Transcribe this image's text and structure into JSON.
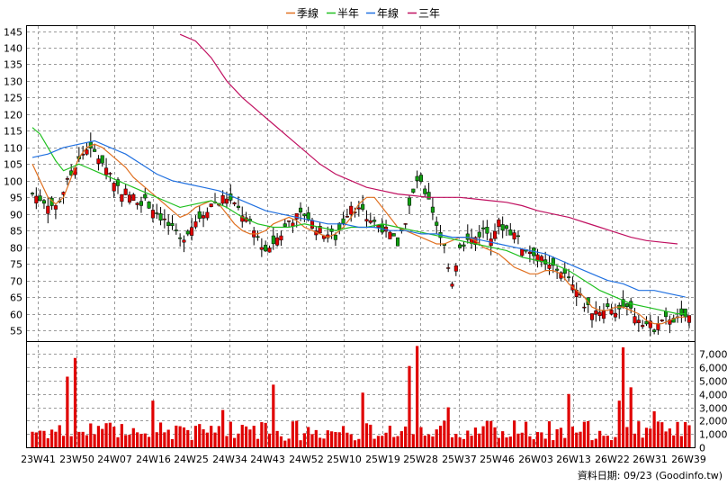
{
  "legend": [
    {
      "label": "季線",
      "color": "#e07020"
    },
    {
      "label": "半年",
      "color": "#20c020"
    },
    {
      "label": "年線",
      "color": "#2070e0"
    },
    {
      "label": "三年",
      "color": "#c01060"
    }
  ],
  "footer": "資料日期: 09/23  (Goodinfo.tw)",
  "chart_data": {
    "type": "candlestick",
    "price_axis": {
      "ticks": [
        55,
        60,
        65,
        70,
        75,
        80,
        85,
        90,
        95,
        100,
        105,
        110,
        115,
        120,
        125,
        130,
        135,
        140,
        145
      ],
      "ylim": [
        51.5,
        146.5
      ]
    },
    "volume_axis": {
      "ticks": [
        0,
        1000,
        2000,
        3000,
        4000,
        5000,
        6000,
        7000
      ],
      "tick_labels": [
        "0",
        "1,000",
        "2,000",
        "3,000",
        "4,000",
        "5,000",
        "6,000",
        "7,000"
      ],
      "ylim": [
        0,
        7900
      ]
    },
    "x_labels": [
      "23W41",
      "23W50",
      "24W07",
      "24W16",
      "24W25",
      "24W34",
      "24W43",
      "24W52",
      "25W10",
      "25W19",
      "25W28",
      "25W37",
      "25W46",
      "26W03",
      "26W13",
      "26W22",
      "26W31",
      "26W39"
    ],
    "grid": true,
    "moving_averages": [
      {
        "name": "季線",
        "points": [
          [
            0,
            105
          ],
          [
            2,
            100
          ],
          [
            4,
            95
          ],
          [
            6,
            93
          ],
          [
            8,
            95
          ],
          [
            10,
            101
          ],
          [
            12,
            107
          ],
          [
            14,
            110
          ],
          [
            16,
            111
          ],
          [
            18,
            110
          ],
          [
            20,
            108
          ],
          [
            22,
            106
          ],
          [
            24,
            104
          ],
          [
            26,
            101
          ],
          [
            28,
            99
          ],
          [
            30,
            97
          ],
          [
            32,
            95
          ],
          [
            34,
            93
          ],
          [
            36,
            91
          ],
          [
            38,
            89
          ],
          [
            40,
            90
          ],
          [
            42,
            92
          ],
          [
            44,
            93
          ],
          [
            46,
            94
          ],
          [
            48,
            93
          ],
          [
            50,
            90
          ],
          [
            52,
            87
          ],
          [
            54,
            85
          ],
          [
            56,
            84
          ],
          [
            58,
            84
          ],
          [
            60,
            85
          ],
          [
            62,
            87
          ],
          [
            64,
            88
          ],
          [
            66,
            89
          ],
          [
            68,
            88
          ],
          [
            70,
            86
          ],
          [
            72,
            85
          ],
          [
            74,
            84
          ],
          [
            76,
            83
          ],
          [
            78,
            84
          ],
          [
            80,
            86
          ],
          [
            82,
            89
          ],
          [
            84,
            93
          ],
          [
            86,
            95
          ],
          [
            88,
            95
          ],
          [
            90,
            92
          ],
          [
            92,
            89
          ],
          [
            94,
            86
          ],
          [
            96,
            85
          ],
          [
            98,
            84
          ],
          [
            100,
            83
          ],
          [
            102,
            82
          ],
          [
            104,
            81
          ],
          [
            106,
            81
          ],
          [
            108,
            82
          ],
          [
            110,
            83
          ],
          [
            112,
            83
          ],
          [
            114,
            82
          ],
          [
            116,
            80
          ],
          [
            118,
            79
          ],
          [
            120,
            78
          ],
          [
            122,
            76
          ],
          [
            124,
            74
          ],
          [
            126,
            73
          ],
          [
            128,
            72
          ],
          [
            130,
            72
          ],
          [
            132,
            73
          ],
          [
            134,
            73
          ],
          [
            136,
            72
          ],
          [
            138,
            69
          ],
          [
            140,
            67
          ],
          [
            142,
            65
          ],
          [
            144,
            62
          ],
          [
            146,
            61
          ],
          [
            148,
            61
          ],
          [
            150,
            62
          ],
          [
            152,
            62
          ],
          [
            154,
            61
          ],
          [
            156,
            60
          ],
          [
            158,
            58
          ],
          [
            160,
            57
          ],
          [
            162,
            57
          ],
          [
            164,
            58
          ],
          [
            166,
            59
          ],
          [
            168,
            59
          ]
        ]
      },
      {
        "name": "半年",
        "points": [
          [
            0,
            116
          ],
          [
            2,
            114
          ],
          [
            4,
            110
          ],
          [
            6,
            106
          ],
          [
            8,
            103
          ],
          [
            10,
            104
          ],
          [
            12,
            105
          ],
          [
            14,
            104
          ],
          [
            16,
            103
          ],
          [
            18,
            102
          ],
          [
            20,
            101
          ],
          [
            22,
            100
          ],
          [
            24,
            99
          ],
          [
            26,
            98
          ],
          [
            28,
            97
          ],
          [
            30,
            96
          ],
          [
            34,
            94
          ],
          [
            38,
            92
          ],
          [
            42,
            93
          ],
          [
            46,
            94
          ],
          [
            50,
            92
          ],
          [
            54,
            89
          ],
          [
            58,
            87
          ],
          [
            62,
            86
          ],
          [
            66,
            86
          ],
          [
            70,
            87
          ],
          [
            74,
            86
          ],
          [
            78,
            85
          ],
          [
            82,
            86
          ],
          [
            86,
            86
          ],
          [
            90,
            87
          ],
          [
            94,
            86
          ],
          [
            98,
            85
          ],
          [
            102,
            84
          ],
          [
            106,
            83
          ],
          [
            110,
            82
          ],
          [
            114,
            81
          ],
          [
            118,
            80
          ],
          [
            122,
            79
          ],
          [
            126,
            77
          ],
          [
            130,
            76
          ],
          [
            134,
            75
          ],
          [
            138,
            73
          ],
          [
            142,
            70
          ],
          [
            146,
            67
          ],
          [
            150,
            65
          ],
          [
            154,
            63
          ],
          [
            158,
            62
          ],
          [
            162,
            61
          ],
          [
            166,
            60
          ],
          [
            168,
            60
          ]
        ]
      },
      {
        "name": "年線",
        "points": [
          [
            0,
            107
          ],
          [
            4,
            108
          ],
          [
            8,
            110
          ],
          [
            12,
            111
          ],
          [
            16,
            112
          ],
          [
            20,
            110
          ],
          [
            24,
            108
          ],
          [
            28,
            105
          ],
          [
            32,
            102
          ],
          [
            36,
            100
          ],
          [
            40,
            99
          ],
          [
            44,
            98
          ],
          [
            48,
            97
          ],
          [
            52,
            95
          ],
          [
            56,
            93
          ],
          [
            60,
            91
          ],
          [
            64,
            90
          ],
          [
            68,
            89
          ],
          [
            72,
            88
          ],
          [
            76,
            87
          ],
          [
            80,
            87
          ],
          [
            84,
            86
          ],
          [
            88,
            86
          ],
          [
            92,
            85
          ],
          [
            96,
            85
          ],
          [
            100,
            84
          ],
          [
            104,
            84
          ],
          [
            108,
            83
          ],
          [
            112,
            83
          ],
          [
            116,
            82
          ],
          [
            120,
            81
          ],
          [
            124,
            80
          ],
          [
            128,
            79
          ],
          [
            132,
            78
          ],
          [
            136,
            76
          ],
          [
            140,
            74
          ],
          [
            144,
            72
          ],
          [
            148,
            70
          ],
          [
            152,
            69
          ],
          [
            156,
            67
          ],
          [
            160,
            67
          ],
          [
            164,
            66
          ],
          [
            168,
            65
          ]
        ]
      },
      {
        "name": "三年",
        "points": [
          [
            38,
            144
          ],
          [
            42,
            142
          ],
          [
            46,
            137
          ],
          [
            50,
            130
          ],
          [
            54,
            125
          ],
          [
            58,
            121
          ],
          [
            62,
            117
          ],
          [
            66,
            113
          ],
          [
            70,
            109
          ],
          [
            74,
            105
          ],
          [
            78,
            102
          ],
          [
            82,
            100
          ],
          [
            86,
            98
          ],
          [
            90,
            97
          ],
          [
            94,
            96
          ],
          [
            98,
            95.5
          ],
          [
            102,
            95
          ],
          [
            106,
            95
          ],
          [
            110,
            95
          ],
          [
            114,
            94.5
          ],
          [
            118,
            94
          ],
          [
            122,
            93.5
          ],
          [
            126,
            92.5
          ],
          [
            130,
            91
          ],
          [
            134,
            90
          ],
          [
            138,
            89
          ],
          [
            142,
            87.5
          ],
          [
            146,
            86
          ],
          [
            150,
            84.5
          ],
          [
            154,
            83
          ],
          [
            158,
            82
          ],
          [
            162,
            81.5
          ],
          [
            166,
            81
          ]
        ]
      }
    ]
  }
}
